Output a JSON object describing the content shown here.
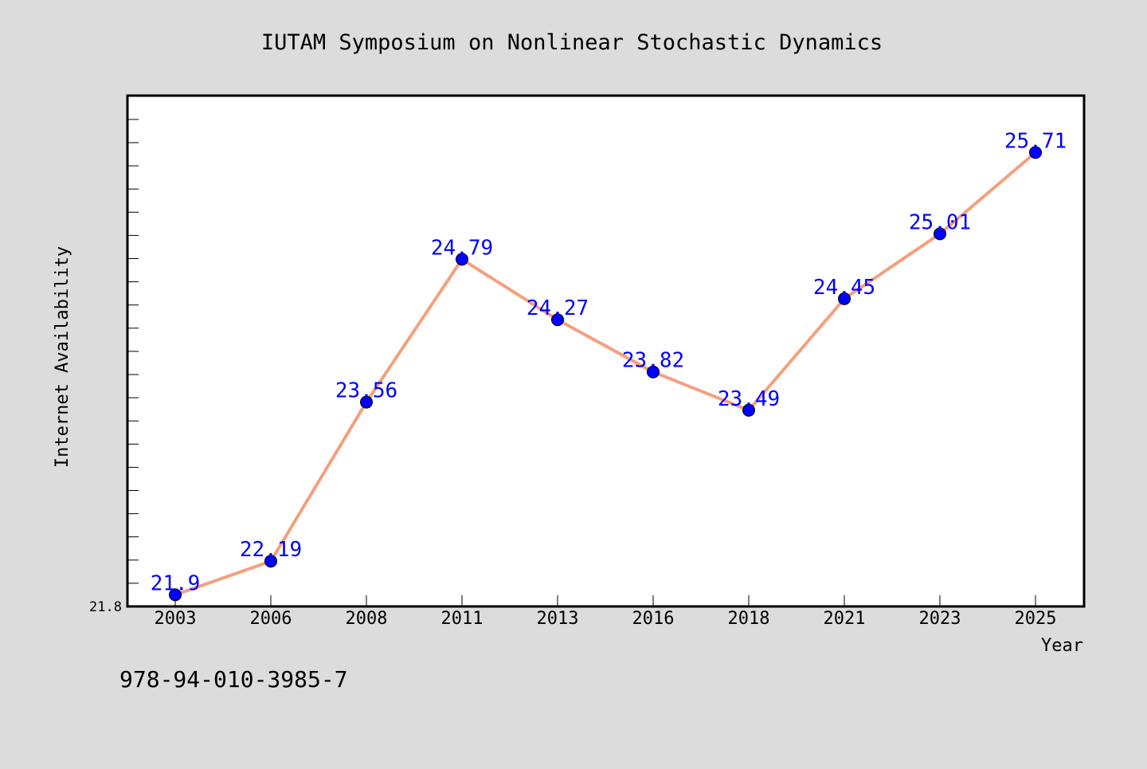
{
  "chart_data": {
    "type": "line",
    "title": "IUTAM Symposium on Nonlinear Stochastic Dynamics",
    "xlabel": "Year",
    "ylabel": "Internet Availability",
    "categories": [
      "2003",
      "2006",
      "2008",
      "2011",
      "2013",
      "2016",
      "2018",
      "2021",
      "2023",
      "2025"
    ],
    "series": [
      {
        "values": [
          21.9,
          22.19,
          23.56,
          24.79,
          24.27,
          23.82,
          23.49,
          24.45,
          25.01,
          25.71
        ],
        "labels": [
          "21.9",
          "22.19",
          "23.56",
          "24.79",
          "24.27",
          "23.82",
          "23.49",
          "24.45",
          "25.01",
          "25.71"
        ]
      }
    ],
    "ylim": [
      21.8,
      26.2
    ],
    "y_tick_label": "21.8",
    "grid": false,
    "legend": "none"
  },
  "colors": {
    "background": "#dcdcdc",
    "plot_background": "#ffffff",
    "line": "#f4a07e",
    "marker": "#0000ff",
    "data_label": "#0000ff",
    "frame": "#000000"
  },
  "footer": {
    "isbn": "978-94-010-3985-7"
  }
}
